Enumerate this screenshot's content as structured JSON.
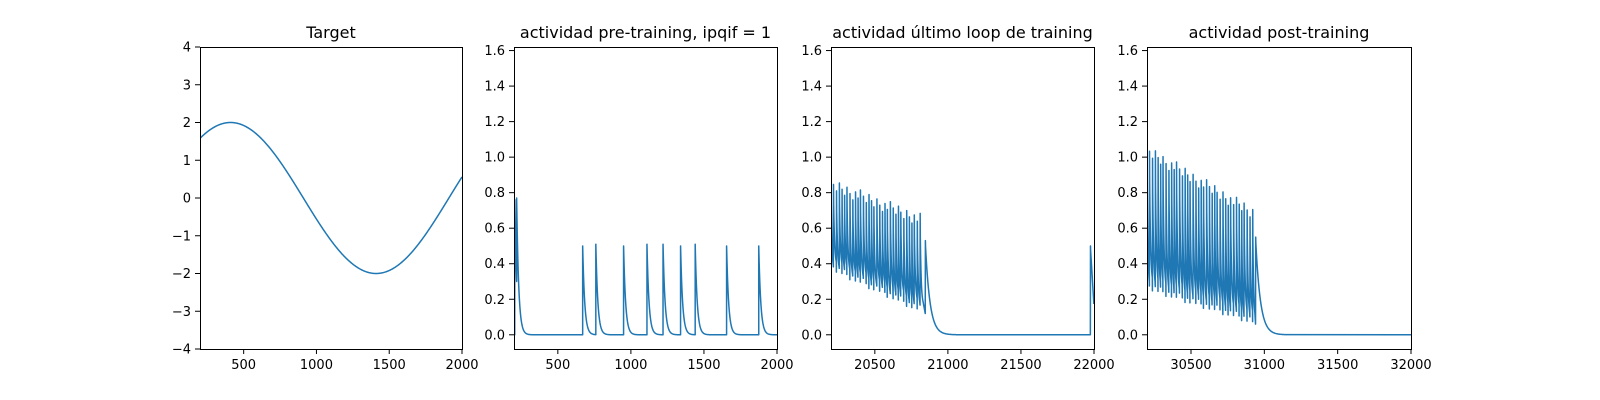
{
  "chart_data": [
    {
      "type": "line",
      "title": "Target",
      "xlim": [
        200,
        2000
      ],
      "ylim": [
        -4,
        4
      ],
      "xticks": [
        500,
        1000,
        1500,
        2000
      ],
      "yticks": [
        -4,
        -3,
        -2,
        -1,
        0,
        1,
        2,
        3,
        4
      ],
      "color": "#1f77b4",
      "grid": false,
      "signal": {
        "kind": "sine",
        "amplitude": 2,
        "period": 2000,
        "peak_x": 410,
        "x_start": 200,
        "x_end": 2000
      }
    },
    {
      "type": "line",
      "title": "actividad pre-training, ipqif = 1",
      "xlim": [
        200,
        2000
      ],
      "ylim": [
        -0.08,
        1.62
      ],
      "xticks": [
        500,
        1000,
        1500,
        2000
      ],
      "yticks": [
        0.0,
        0.2,
        0.4,
        0.6,
        0.8,
        1.0,
        1.2,
        1.4,
        1.6
      ],
      "color": "#1f77b4",
      "grid": false,
      "signal": {
        "kind": "spikes",
        "x_start": 200,
        "x_end": 2000,
        "baseline": 0.0,
        "decay": 14,
        "spikes": [
          [
            205,
            0.76
          ],
          [
            218,
            0.77
          ],
          [
            670,
            0.5
          ],
          [
            760,
            0.51
          ],
          [
            950,
            0.5
          ],
          [
            1110,
            0.51
          ],
          [
            1220,
            0.51
          ],
          [
            1340,
            0.5
          ],
          [
            1440,
            0.51
          ],
          [
            1655,
            0.5
          ],
          [
            1875,
            0.5
          ]
        ]
      }
    },
    {
      "type": "line",
      "title": "actividad último loop de training",
      "xlim": [
        20200,
        22000
      ],
      "ylim": [
        -0.08,
        1.62
      ],
      "xticks": [
        20500,
        21000,
        21500,
        22000
      ],
      "yticks": [
        0.0,
        0.2,
        0.4,
        0.6,
        0.8,
        1.0,
        1.2,
        1.4,
        1.6
      ],
      "color": "#1f77b4",
      "grid": false,
      "signal": {
        "kind": "burst",
        "x_start": 20200,
        "x_end": 22000,
        "baseline": 0.0,
        "burst_start": 20200,
        "burst_end": 20820,
        "period": 19,
        "peak_start": 0.88,
        "peak_end": 0.68,
        "trough_start": 0.36,
        "trough_end": 0.12,
        "final_spike": [
          20845,
          0.53
        ],
        "decay_end": 21000,
        "late_spike": [
          21975,
          0.5
        ],
        "late_end_value": 0.16
      }
    },
    {
      "type": "line",
      "title": "actividad post-training",
      "xlim": [
        30200,
        32000
      ],
      "ylim": [
        -0.08,
        1.62
      ],
      "xticks": [
        30500,
        31000,
        31500,
        32000
      ],
      "yticks": [
        0.0,
        0.2,
        0.4,
        0.6,
        0.8,
        1.0,
        1.2,
        1.4,
        1.6
      ],
      "color": "#1f77b4",
      "grid": false,
      "signal": {
        "kind": "burst",
        "x_start": 30200,
        "x_end": 32000,
        "baseline": 0.0,
        "burst_start": 30200,
        "burst_end": 30920,
        "period": 19,
        "peak_start": 1.07,
        "peak_end": 0.72,
        "trough_start": 0.25,
        "trough_end": 0.06,
        "final_spike": [
          30940,
          0.55
        ],
        "decay_end": 31100
      }
    }
  ]
}
